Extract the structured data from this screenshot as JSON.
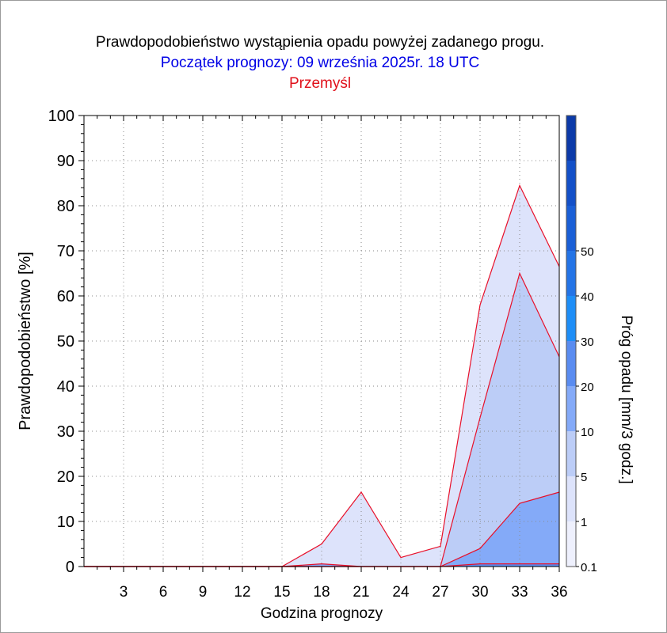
{
  "header": {
    "title": "Prawdopodobieństwo wystąpienia opadu powyżej zadanego progu.",
    "subtitle": "Początek prognozy: 09 września 2025r. 18 UTC",
    "location": "Przemyśl"
  },
  "chart_data": {
    "type": "area",
    "xlabel": "Godzina prognozy",
    "ylabel": "Prawdopodobieństwo [%]",
    "x": [
      0,
      3,
      6,
      9,
      12,
      15,
      18,
      21,
      24,
      27,
      30,
      33,
      36
    ],
    "xticks": [
      3,
      6,
      9,
      12,
      15,
      18,
      21,
      24,
      27,
      30,
      33,
      36
    ],
    "xlim": [
      0,
      36
    ],
    "ylim": [
      0,
      100
    ],
    "yticks": [
      0,
      10,
      20,
      30,
      40,
      50,
      60,
      70,
      80,
      90,
      100
    ],
    "grid": true,
    "series": [
      {
        "name": "0.1",
        "color": "#dde3fb",
        "values": [
          0,
          0,
          0,
          0,
          0,
          0,
          5,
          16.5,
          2,
          4.5,
          58,
          84.5,
          66.5
        ]
      },
      {
        "name": "1",
        "color": "#bccdf7",
        "values": [
          0,
          0,
          0,
          0,
          0,
          0,
          0,
          0,
          0,
          0,
          33,
          65,
          46.5
        ]
      },
      {
        "name": "5",
        "color": "#84aaf8",
        "values": [
          0,
          0,
          0,
          0,
          0,
          0,
          0.6,
          0,
          0,
          0,
          4,
          14,
          16.5
        ]
      },
      {
        "name": "10",
        "color": "#5a8cf0",
        "values": [
          0,
          0,
          0,
          0,
          0,
          0,
          0,
          0,
          0,
          0,
          0.6,
          0.6,
          0.6
        ]
      }
    ],
    "colorbar": {
      "label": "Próg opadu [mm/3 godz.]",
      "ticks": [
        "0.1",
        "1",
        "5",
        "10",
        "20",
        "30",
        "40",
        "50"
      ],
      "colors": [
        "#eef0fd",
        "#dde3fb",
        "#bccdf7",
        "#84aaf8",
        "#5a8cf0",
        "#1e8ef7",
        "#2474e6",
        "#1a5fd6",
        "#1350c8",
        "#0c3aa8"
      ]
    }
  }
}
